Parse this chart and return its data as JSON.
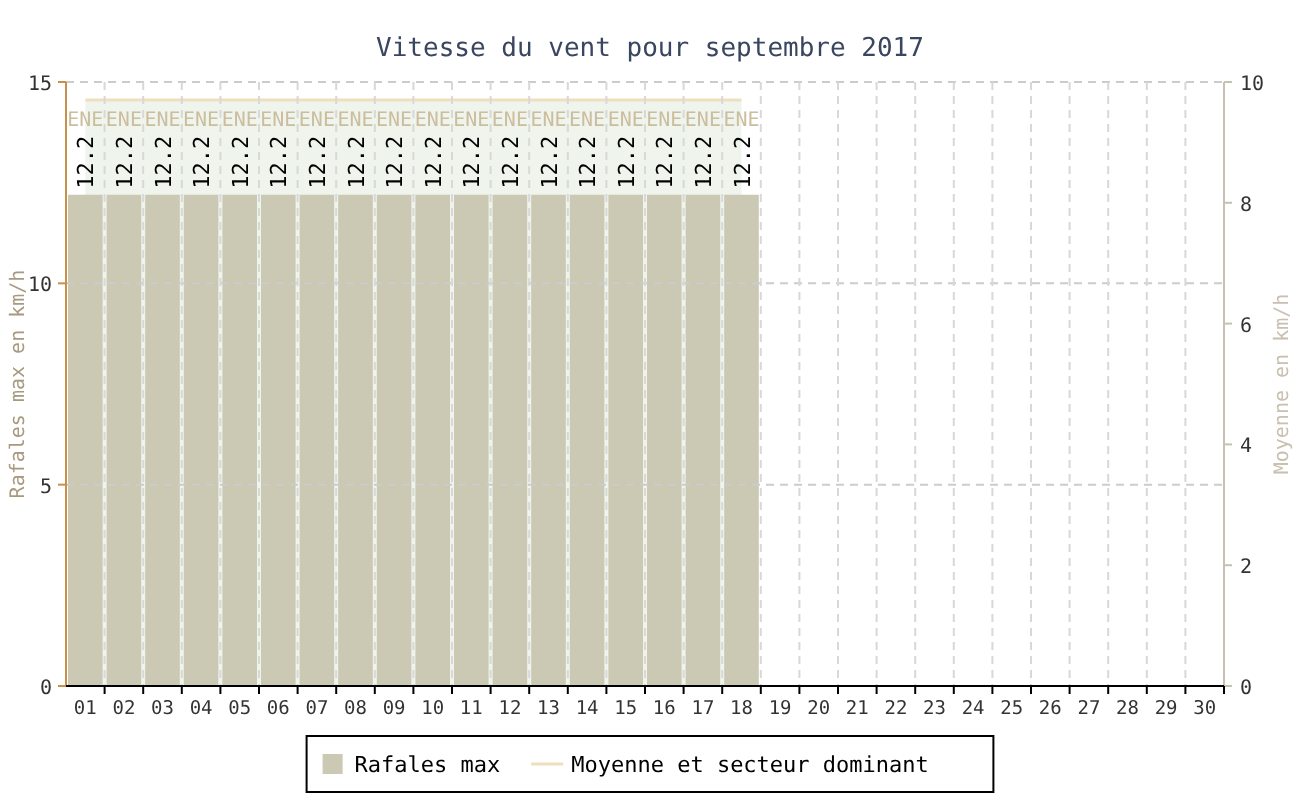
{
  "chart_data": {
    "type": "bar",
    "title": "Vitesse du vent pour septembre 2017",
    "ylabel": "Rafales max en km/h",
    "y2label": "Moyenne en km/h",
    "categories": [
      "01",
      "02",
      "03",
      "04",
      "05",
      "06",
      "07",
      "08",
      "09",
      "10",
      "11",
      "12",
      "13",
      "14",
      "15",
      "16",
      "17",
      "18",
      "19",
      "20",
      "21",
      "22",
      "23",
      "24",
      "25",
      "26",
      "27",
      "28",
      "29",
      "30"
    ],
    "series": [
      {
        "name": "Rafales max",
        "color": "#cbc9b3",
        "values": [
          12.2,
          12.2,
          12.2,
          12.2,
          12.2,
          12.2,
          12.2,
          12.2,
          12.2,
          12.2,
          12.2,
          12.2,
          12.2,
          12.2,
          12.2,
          12.2,
          12.2,
          12.2,
          null,
          null,
          null,
          null,
          null,
          null,
          null,
          null,
          null,
          null,
          null,
          null
        ]
      },
      {
        "name": "Moyenne et secteur dominant",
        "type": "area",
        "axis": "y2",
        "color": "#efdfbd",
        "values": [
          9.7,
          9.7,
          9.7,
          9.7,
          9.7,
          9.7,
          9.7,
          9.7,
          9.7,
          9.7,
          9.7,
          9.7,
          9.7,
          9.7,
          9.7,
          9.7,
          9.7,
          9.7,
          null,
          null,
          null,
          null,
          null,
          null,
          null,
          null,
          null,
          null,
          null,
          null
        ],
        "value_labels": [
          "ENE",
          "ENE",
          "ENE",
          "ENE",
          "ENE",
          "ENE",
          "ENE",
          "ENE",
          "ENE",
          "ENE",
          "ENE",
          "ENE",
          "ENE",
          "ENE",
          "ENE",
          "ENE",
          "ENE",
          "ENE",
          null,
          null,
          null,
          null,
          null,
          null,
          null,
          null,
          null,
          null,
          null,
          null
        ]
      }
    ],
    "data_labels": true,
    "ylim": [
      0,
      15
    ],
    "yticks": [
      0,
      5,
      10,
      15
    ],
    "y2lim": [
      0,
      10
    ],
    "y2ticks": [
      0,
      2,
      4,
      6,
      8,
      10
    ],
    "grid": true,
    "legend": "bottom"
  }
}
